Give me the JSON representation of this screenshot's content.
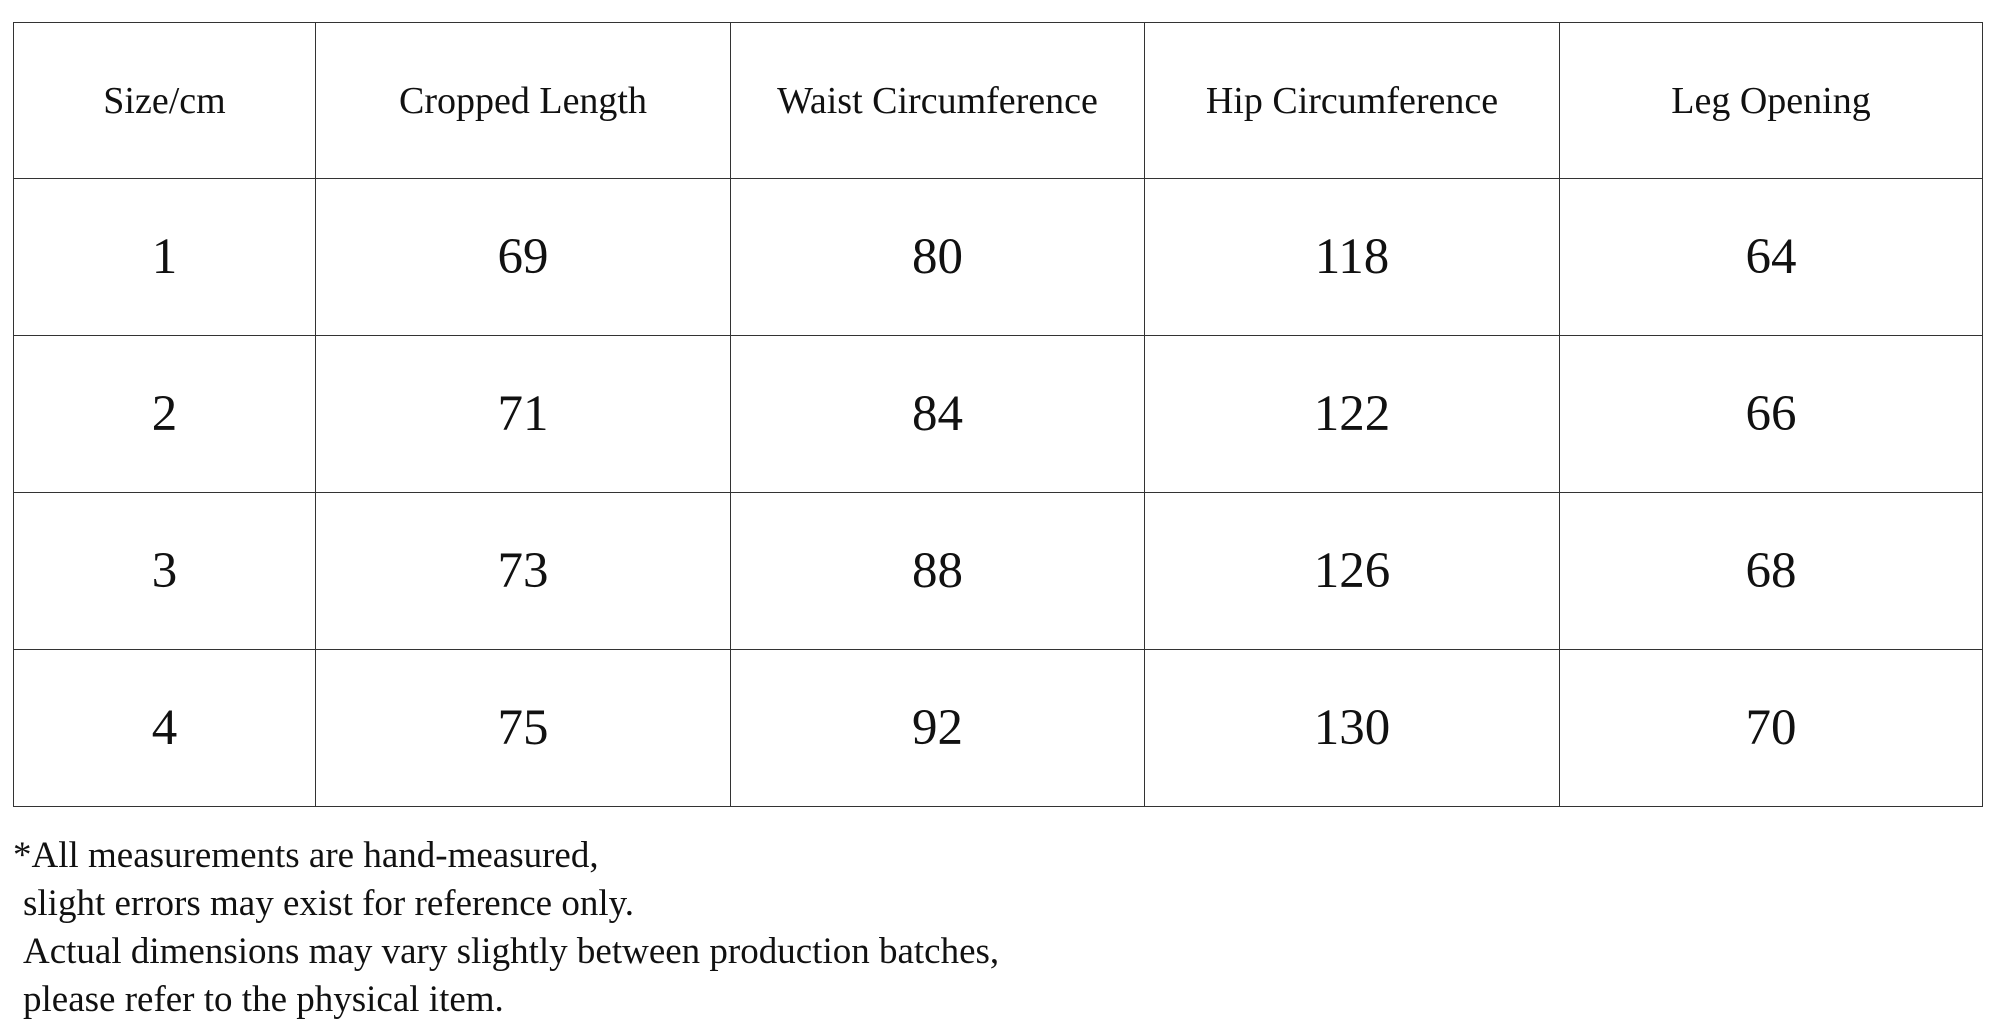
{
  "table": {
    "header": [
      "Size/cm",
      "Cropped Length",
      "Waist Circumference",
      "Hip Circumference",
      "Leg Opening"
    ],
    "rows": [
      [
        1,
        69,
        80,
        118,
        64
      ],
      [
        2,
        71,
        84,
        122,
        66
      ],
      [
        3,
        73,
        88,
        126,
        68
      ],
      [
        4,
        75,
        92,
        130,
        70
      ]
    ]
  },
  "notes": [
    "*All measurements are hand-measured,",
    "slight errors may exist for reference only.",
    "Actual dimensions may vary slightly between production batches,",
    "please refer to the physical item."
  ]
}
